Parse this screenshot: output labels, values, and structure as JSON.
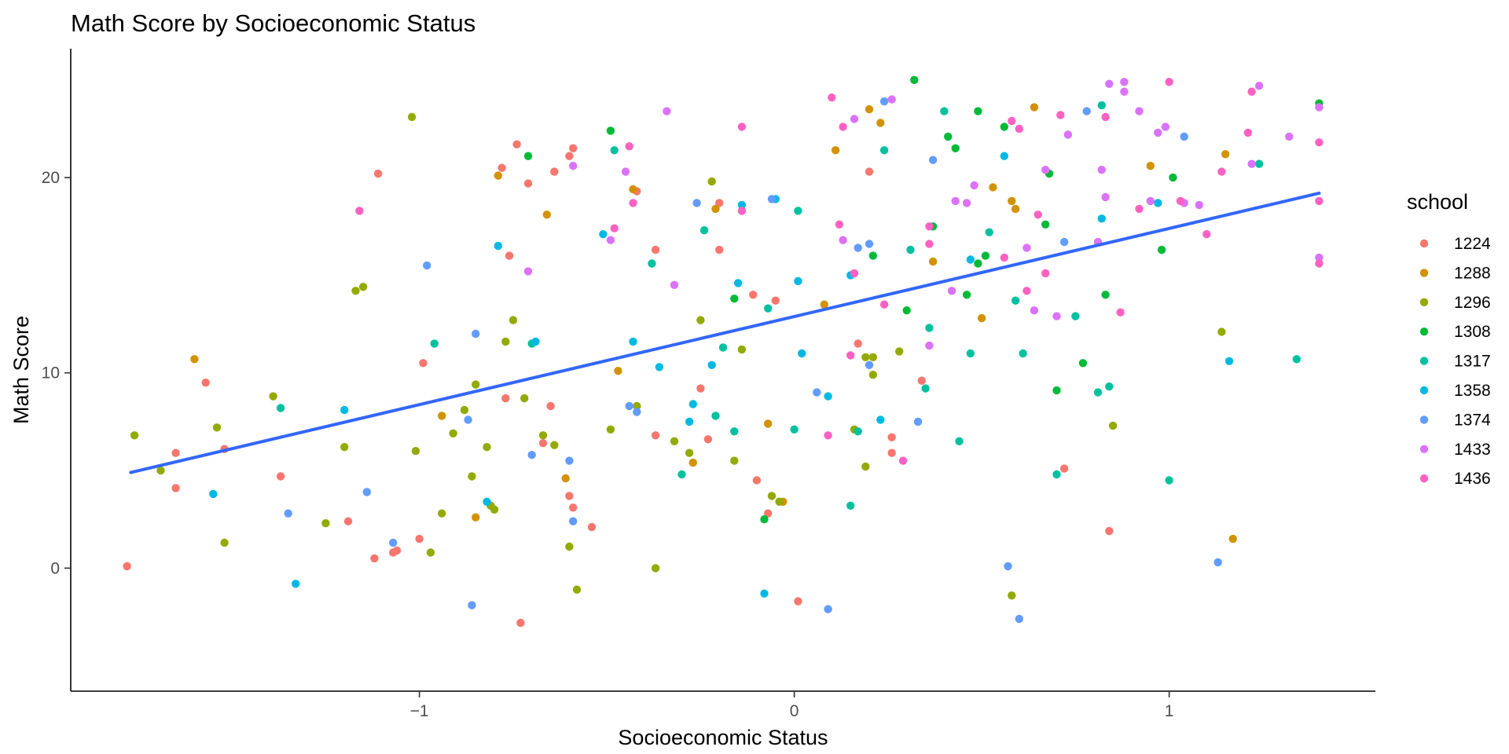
{
  "chart_data": {
    "type": "scatter",
    "title": "Math Score by Socioeconomic Status",
    "xlabel": "Socioeconomic Status",
    "ylabel": "Math Score",
    "xlim": [
      -1.93,
      1.55
    ],
    "ylim": [
      -6.3,
      26.6
    ],
    "x_ticks": [
      -1,
      0,
      1
    ],
    "y_ticks": [
      0,
      10,
      20
    ],
    "grid": false,
    "legend": {
      "title": "school",
      "placement": "right"
    },
    "trend_line": {
      "type": "linear",
      "color": "#3366FF",
      "x": [
        -1.77,
        1.4
      ],
      "y": [
        4.9,
        19.2
      ]
    },
    "series": [
      {
        "name": "1224",
        "color": "#F8766D",
        "points": [
          [
            -1.78,
            0.1
          ],
          [
            -1.65,
            5.9
          ],
          [
            -1.65,
            4.1
          ],
          [
            -1.57,
            9.5
          ],
          [
            -1.52,
            6.1
          ],
          [
            -1.37,
            4.7
          ],
          [
            -1.19,
            2.4
          ],
          [
            -1.11,
            20.2
          ],
          [
            -1.12,
            0.5
          ],
          [
            -1.06,
            0.9
          ],
          [
            -1.07,
            0.8
          ],
          [
            -1.0,
            1.5
          ],
          [
            -0.99,
            10.5
          ],
          [
            -0.78,
            20.5
          ],
          [
            -0.77,
            8.7
          ],
          [
            -0.76,
            16.0
          ],
          [
            -0.74,
            21.7
          ],
          [
            -0.73,
            -2.8
          ],
          [
            -0.71,
            19.7
          ],
          [
            -0.67,
            6.4
          ],
          [
            -0.65,
            8.3
          ],
          [
            -0.64,
            20.3
          ],
          [
            -0.6,
            21.1
          ],
          [
            -0.59,
            21.5
          ],
          [
            -0.6,
            3.7
          ],
          [
            -0.59,
            3.1
          ],
          [
            -0.54,
            2.1
          ],
          [
            -0.42,
            19.3
          ],
          [
            -0.37,
            16.3
          ],
          [
            -0.37,
            6.8
          ],
          [
            -0.25,
            9.2
          ],
          [
            -0.23,
            6.6
          ],
          [
            -0.2,
            16.3
          ],
          [
            -0.2,
            18.7
          ],
          [
            -0.11,
            14.0
          ],
          [
            -0.1,
            4.5
          ],
          [
            -0.07,
            2.8
          ],
          [
            -0.05,
            13.7
          ],
          [
            0.01,
            -1.7
          ],
          [
            0.17,
            11.5
          ],
          [
            0.2,
            20.3
          ],
          [
            0.26,
            5.9
          ],
          [
            0.26,
            6.7
          ],
          [
            0.34,
            9.6
          ],
          [
            0.72,
            5.1
          ],
          [
            0.84,
            1.9
          ]
        ]
      },
      {
        "name": "1288",
        "color": "#D39200",
        "points": [
          [
            -1.6,
            10.7
          ],
          [
            -0.94,
            7.8
          ],
          [
            -0.85,
            2.6
          ],
          [
            -0.79,
            20.1
          ],
          [
            -0.66,
            18.1
          ],
          [
            -0.61,
            4.6
          ],
          [
            -0.47,
            10.1
          ],
          [
            -0.43,
            19.4
          ],
          [
            -0.27,
            5.4
          ],
          [
            -0.21,
            18.4
          ],
          [
            -0.07,
            7.4
          ],
          [
            -0.03,
            3.4
          ],
          [
            0.08,
            13.5
          ],
          [
            0.11,
            21.4
          ],
          [
            0.2,
            23.5
          ],
          [
            0.23,
            22.8
          ],
          [
            0.37,
            15.7
          ],
          [
            0.5,
            12.8
          ],
          [
            0.53,
            19.5
          ],
          [
            0.58,
            18.8
          ],
          [
            0.59,
            18.4
          ],
          [
            0.64,
            23.6
          ],
          [
            0.95,
            20.6
          ],
          [
            1.15,
            21.2
          ],
          [
            1.17,
            1.5
          ]
        ]
      },
      {
        "name": "1296",
        "color": "#93AA00",
        "points": [
          [
            -1.76,
            6.8
          ],
          [
            -1.69,
            5.0
          ],
          [
            -1.54,
            7.2
          ],
          [
            -1.52,
            1.3
          ],
          [
            -1.39,
            8.8
          ],
          [
            -1.25,
            2.3
          ],
          [
            -1.2,
            6.2
          ],
          [
            -1.17,
            14.2
          ],
          [
            -1.15,
            14.4
          ],
          [
            -1.02,
            23.1
          ],
          [
            -1.01,
            6.0
          ],
          [
            -0.97,
            0.8
          ],
          [
            -0.94,
            2.8
          ],
          [
            -0.91,
            6.9
          ],
          [
            -0.88,
            8.1
          ],
          [
            -0.86,
            4.7
          ],
          [
            -0.85,
            9.4
          ],
          [
            -0.82,
            6.2
          ],
          [
            -0.81,
            3.2
          ],
          [
            -0.8,
            3.0
          ],
          [
            -0.77,
            11.6
          ],
          [
            -0.75,
            12.7
          ],
          [
            -0.72,
            8.7
          ],
          [
            -0.67,
            6.8
          ],
          [
            -0.64,
            6.3
          ],
          [
            -0.6,
            1.1
          ],
          [
            -0.58,
            -1.1
          ],
          [
            -0.49,
            7.1
          ],
          [
            -0.42,
            8.3
          ],
          [
            -0.37,
            0.0
          ],
          [
            -0.32,
            6.5
          ],
          [
            -0.28,
            5.9
          ],
          [
            -0.25,
            12.7
          ],
          [
            -0.22,
            19.8
          ],
          [
            -0.16,
            5.5
          ],
          [
            -0.14,
            11.2
          ],
          [
            -0.06,
            3.7
          ],
          [
            -0.04,
            3.4
          ],
          [
            0.16,
            7.1
          ],
          [
            0.19,
            10.8
          ],
          [
            0.19,
            5.2
          ],
          [
            0.21,
            9.9
          ],
          [
            0.21,
            10.8
          ],
          [
            0.28,
            11.1
          ],
          [
            0.58,
            -1.4
          ],
          [
            0.85,
            7.3
          ],
          [
            1.14,
            12.1
          ]
        ]
      },
      {
        "name": "1308",
        "color": "#00BA38",
        "points": [
          [
            -0.71,
            21.1
          ],
          [
            -0.49,
            22.4
          ],
          [
            -0.16,
            13.8
          ],
          [
            -0.08,
            2.5
          ],
          [
            0.21,
            16.0
          ],
          [
            0.3,
            13.2
          ],
          [
            0.32,
            25.0
          ],
          [
            0.37,
            17.5
          ],
          [
            0.41,
            22.1
          ],
          [
            0.43,
            21.5
          ],
          [
            0.46,
            14.0
          ],
          [
            0.49,
            15.6
          ],
          [
            0.51,
            16.0
          ],
          [
            0.49,
            23.4
          ],
          [
            0.56,
            22.6
          ],
          [
            0.67,
            17.6
          ],
          [
            0.68,
            20.2
          ],
          [
            0.7,
            9.1
          ],
          [
            0.77,
            10.5
          ],
          [
            0.83,
            14.0
          ],
          [
            0.98,
            16.3
          ],
          [
            1.01,
            20.0
          ],
          [
            1.4,
            23.8
          ]
        ]
      },
      {
        "name": "1317",
        "color": "#00C19F",
        "points": [
          [
            -1.37,
            8.2
          ],
          [
            -0.96,
            11.5
          ],
          [
            -0.7,
            11.5
          ],
          [
            -0.48,
            21.4
          ],
          [
            -0.38,
            15.6
          ],
          [
            -0.3,
            4.8
          ],
          [
            -0.24,
            17.3
          ],
          [
            -0.21,
            7.8
          ],
          [
            -0.19,
            11.3
          ],
          [
            -0.16,
            7.0
          ],
          [
            -0.07,
            13.3
          ],
          [
            0.0,
            7.1
          ],
          [
            0.01,
            18.3
          ],
          [
            0.15,
            3.2
          ],
          [
            0.17,
            7.0
          ],
          [
            0.24,
            21.4
          ],
          [
            0.31,
            16.3
          ],
          [
            0.35,
            9.2
          ],
          [
            0.36,
            12.3
          ],
          [
            0.4,
            23.4
          ],
          [
            0.44,
            6.5
          ],
          [
            0.47,
            11.0
          ],
          [
            0.52,
            17.2
          ],
          [
            0.59,
            13.7
          ],
          [
            0.61,
            11.0
          ],
          [
            0.7,
            4.8
          ],
          [
            0.75,
            12.9
          ],
          [
            0.81,
            9.0
          ],
          [
            0.82,
            23.7
          ],
          [
            0.84,
            9.3
          ],
          [
            1.0,
            4.5
          ],
          [
            1.24,
            20.7
          ],
          [
            1.34,
            10.7
          ]
        ]
      },
      {
        "name": "1358",
        "color": "#00B9E3",
        "points": [
          [
            -1.55,
            3.8
          ],
          [
            -1.33,
            -0.8
          ],
          [
            -1.2,
            8.1
          ],
          [
            -0.82,
            3.4
          ],
          [
            -0.79,
            16.5
          ],
          [
            -0.69,
            11.6
          ],
          [
            -0.51,
            17.1
          ],
          [
            -0.43,
            11.6
          ],
          [
            -0.36,
            10.3
          ],
          [
            -0.28,
            7.5
          ],
          [
            -0.27,
            8.4
          ],
          [
            -0.22,
            10.4
          ],
          [
            -0.15,
            14.6
          ],
          [
            -0.14,
            18.6
          ],
          [
            -0.08,
            -1.3
          ],
          [
            -0.05,
            18.9
          ],
          [
            0.01,
            14.7
          ],
          [
            0.02,
            11.0
          ],
          [
            0.09,
            8.8
          ],
          [
            0.15,
            15.0
          ],
          [
            0.23,
            7.6
          ],
          [
            0.47,
            15.8
          ],
          [
            0.56,
            21.1
          ],
          [
            0.82,
            17.9
          ],
          [
            0.97,
            18.7
          ],
          [
            1.16,
            10.6
          ]
        ]
      },
      {
        "name": "1374",
        "color": "#619CFF",
        "points": [
          [
            -1.35,
            2.8
          ],
          [
            -1.14,
            3.9
          ],
          [
            -1.07,
            1.3
          ],
          [
            -0.98,
            15.5
          ],
          [
            -0.87,
            7.6
          ],
          [
            -0.86,
            -1.9
          ],
          [
            -0.85,
            12.0
          ],
          [
            -0.7,
            5.8
          ],
          [
            -0.6,
            5.5
          ],
          [
            -0.59,
            2.4
          ],
          [
            -0.44,
            8.3
          ],
          [
            -0.42,
            8.0
          ],
          [
            -0.26,
            18.7
          ],
          [
            -0.06,
            18.9
          ],
          [
            0.06,
            9.0
          ],
          [
            0.09,
            -2.1
          ],
          [
            0.17,
            16.4
          ],
          [
            0.2,
            10.4
          ],
          [
            0.2,
            16.6
          ],
          [
            0.24,
            23.9
          ],
          [
            0.33,
            7.5
          ],
          [
            0.37,
            20.9
          ],
          [
            0.57,
            0.1
          ],
          [
            0.6,
            -2.6
          ],
          [
            0.72,
            16.7
          ],
          [
            0.78,
            23.4
          ],
          [
            1.04,
            22.1
          ],
          [
            1.13,
            0.3
          ]
        ]
      },
      {
        "name": "1433",
        "color": "#DB72FB",
        "points": [
          [
            -0.71,
            15.2
          ],
          [
            -0.59,
            20.6
          ],
          [
            -0.49,
            16.8
          ],
          [
            -0.45,
            20.3
          ],
          [
            -0.34,
            23.4
          ],
          [
            -0.32,
            14.5
          ],
          [
            0.13,
            16.8
          ],
          [
            0.16,
            23.0
          ],
          [
            0.26,
            24.0
          ],
          [
            0.36,
            11.4
          ],
          [
            0.42,
            14.2
          ],
          [
            0.43,
            18.8
          ],
          [
            0.46,
            18.7
          ],
          [
            0.48,
            19.6
          ],
          [
            0.62,
            16.4
          ],
          [
            0.64,
            13.2
          ],
          [
            0.67,
            20.4
          ],
          [
            0.7,
            12.9
          ],
          [
            0.73,
            22.2
          ],
          [
            0.81,
            16.7
          ],
          [
            0.82,
            20.4
          ],
          [
            0.83,
            19.0
          ],
          [
            0.84,
            24.8
          ],
          [
            0.88,
            24.4
          ],
          [
            0.88,
            24.9
          ],
          [
            0.92,
            23.4
          ],
          [
            0.95,
            18.8
          ],
          [
            0.97,
            22.3
          ],
          [
            0.99,
            22.6
          ],
          [
            1.04,
            18.7
          ],
          [
            1.08,
            18.6
          ],
          [
            1.22,
            20.7
          ],
          [
            1.24,
            24.7
          ],
          [
            1.32,
            22.1
          ],
          [
            1.4,
            23.6
          ],
          [
            1.4,
            15.9
          ]
        ]
      },
      {
        "name": "1436",
        "color": "#FF61C3",
        "points": [
          [
            -1.16,
            18.3
          ],
          [
            -0.48,
            17.4
          ],
          [
            -0.43,
            18.7
          ],
          [
            -0.44,
            21.6
          ],
          [
            -0.14,
            22.6
          ],
          [
            -0.14,
            18.3
          ],
          [
            0.09,
            6.8
          ],
          [
            0.1,
            24.1
          ],
          [
            0.12,
            17.6
          ],
          [
            0.13,
            22.6
          ],
          [
            0.15,
            10.9
          ],
          [
            0.16,
            15.1
          ],
          [
            0.24,
            13.5
          ],
          [
            0.29,
            5.5
          ],
          [
            0.36,
            16.6
          ],
          [
            0.36,
            17.5
          ],
          [
            0.56,
            15.9
          ],
          [
            0.58,
            22.9
          ],
          [
            0.6,
            22.5
          ],
          [
            0.62,
            14.2
          ],
          [
            0.65,
            18.1
          ],
          [
            0.67,
            15.1
          ],
          [
            0.71,
            23.2
          ],
          [
            0.83,
            23.1
          ],
          [
            0.87,
            13.1
          ],
          [
            0.92,
            18.4
          ],
          [
            1.0,
            24.9
          ],
          [
            1.03,
            18.8
          ],
          [
            1.1,
            17.1
          ],
          [
            1.14,
            20.3
          ],
          [
            1.21,
            22.3
          ],
          [
            1.22,
            24.4
          ],
          [
            1.4,
            21.8
          ],
          [
            1.4,
            18.8
          ],
          [
            1.4,
            15.6
          ]
        ]
      }
    ]
  }
}
